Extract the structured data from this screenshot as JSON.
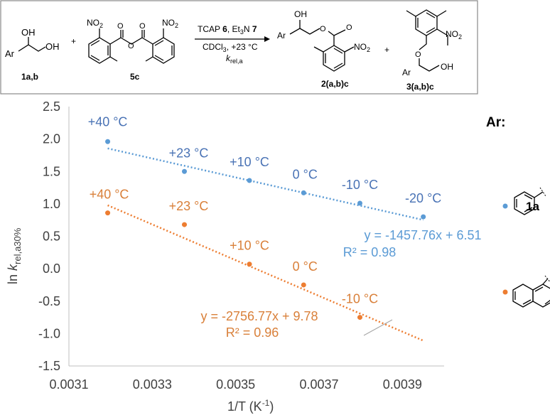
{
  "scheme": {
    "reactant_diol": {
      "oh1": "OH",
      "oh2": "OH",
      "ar": "Ar",
      "label": "1a,b"
    },
    "plus1": "+",
    "anhydride": {
      "no2_left": "NO",
      "no2_left_sub": "2",
      "no2_right": "NO",
      "no2_right_sub": "2",
      "label": "5c"
    },
    "conditions": {
      "line1_a": "TCAP ",
      "line1_b": "6",
      "line1_c": ", Et",
      "line1_d": "3",
      "line1_e": "N ",
      "line1_f": "7",
      "line2_a": "CDCl",
      "line2_b": "3",
      "line2_c": ", +23 °C",
      "line3_a": "k",
      "line3_b": "rel,a"
    },
    "product2": {
      "oh": "OH",
      "ar": "Ar",
      "no2": "NO",
      "no2_sub": "2",
      "label": "2(a,b)c"
    },
    "plus2": "+",
    "product3": {
      "no2": "NO",
      "no2_sub": "2",
      "ar": "Ar",
      "oh": "OH",
      "label": "3(a,b)c"
    }
  },
  "legend": {
    "title": "Ar:",
    "compound_1a": "1a"
  },
  "colors": {
    "series_a": "#5b9bd5",
    "series_b": "#ed7d31",
    "fit_a_line": "#5b9bd5",
    "fit_b_line": "#ed7d31"
  },
  "chart_data": {
    "type": "scatter",
    "xlabel": "1/T (K",
    "xlabel_sup": "-1",
    "xlabel_end": ")",
    "ylabel_a": "ln ",
    "ylabel_k": "k",
    "ylabel_sub": "rel,a30%",
    "xlim": [
      0.0031,
      0.004
    ],
    "ylim": [
      -1.5,
      2.5
    ],
    "xticks": [
      0.0031,
      0.0033,
      0.0035,
      0.0037,
      0.0039
    ],
    "xtick_labels": [
      "0.0031",
      "0.0033",
      "0.0035",
      "0.0037",
      "0.0039"
    ],
    "yticks": [
      2.5,
      2.0,
      1.5,
      1.0,
      0.5,
      0.0,
      -0.5,
      -1.0,
      -1.5
    ],
    "ytick_labels": [
      "2.5",
      "2.0",
      "1.5",
      "1.0",
      "0.5",
      "0.0",
      "-0.5",
      "-1.0",
      "-1.5"
    ],
    "grid": false,
    "legend_position": "right",
    "series": [
      {
        "x": [
          0.003193,
          0.003377,
          0.003533,
          0.003663,
          0.003798,
          0.00395
        ],
        "y": [
          1.96,
          1.5,
          1.36,
          1.17,
          1.01,
          0.8
        ],
        "point_labels": [
          "+40 °C",
          "+23 °C",
          "+10 °C",
          "0 °C",
          "-10 °C",
          "-20 °C"
        ],
        "fit": {
          "slope": -1457.76,
          "intercept": 6.51,
          "x_range": [
            0.003193,
            0.00395
          ]
        },
        "equation": "y = -1457.76x + 6.51",
        "r2": "R² = 0.98"
      },
      {
        "x": [
          0.003193,
          0.003377,
          0.003533,
          0.003663,
          0.003798
        ],
        "y": [
          0.86,
          0.68,
          0.07,
          -0.25,
          -0.75
        ],
        "point_labels": [
          "+40 °C",
          "+23 °C",
          "+10 °C",
          "0 °C",
          "-10 °C"
        ],
        "fit": {
          "slope": -2756.77,
          "intercept": 9.78,
          "x_range": [
            0.003193,
            0.00395
          ]
        },
        "equation": "y = -2756.77x + 9.78",
        "r2": "R² = 0.96"
      }
    ]
  }
}
